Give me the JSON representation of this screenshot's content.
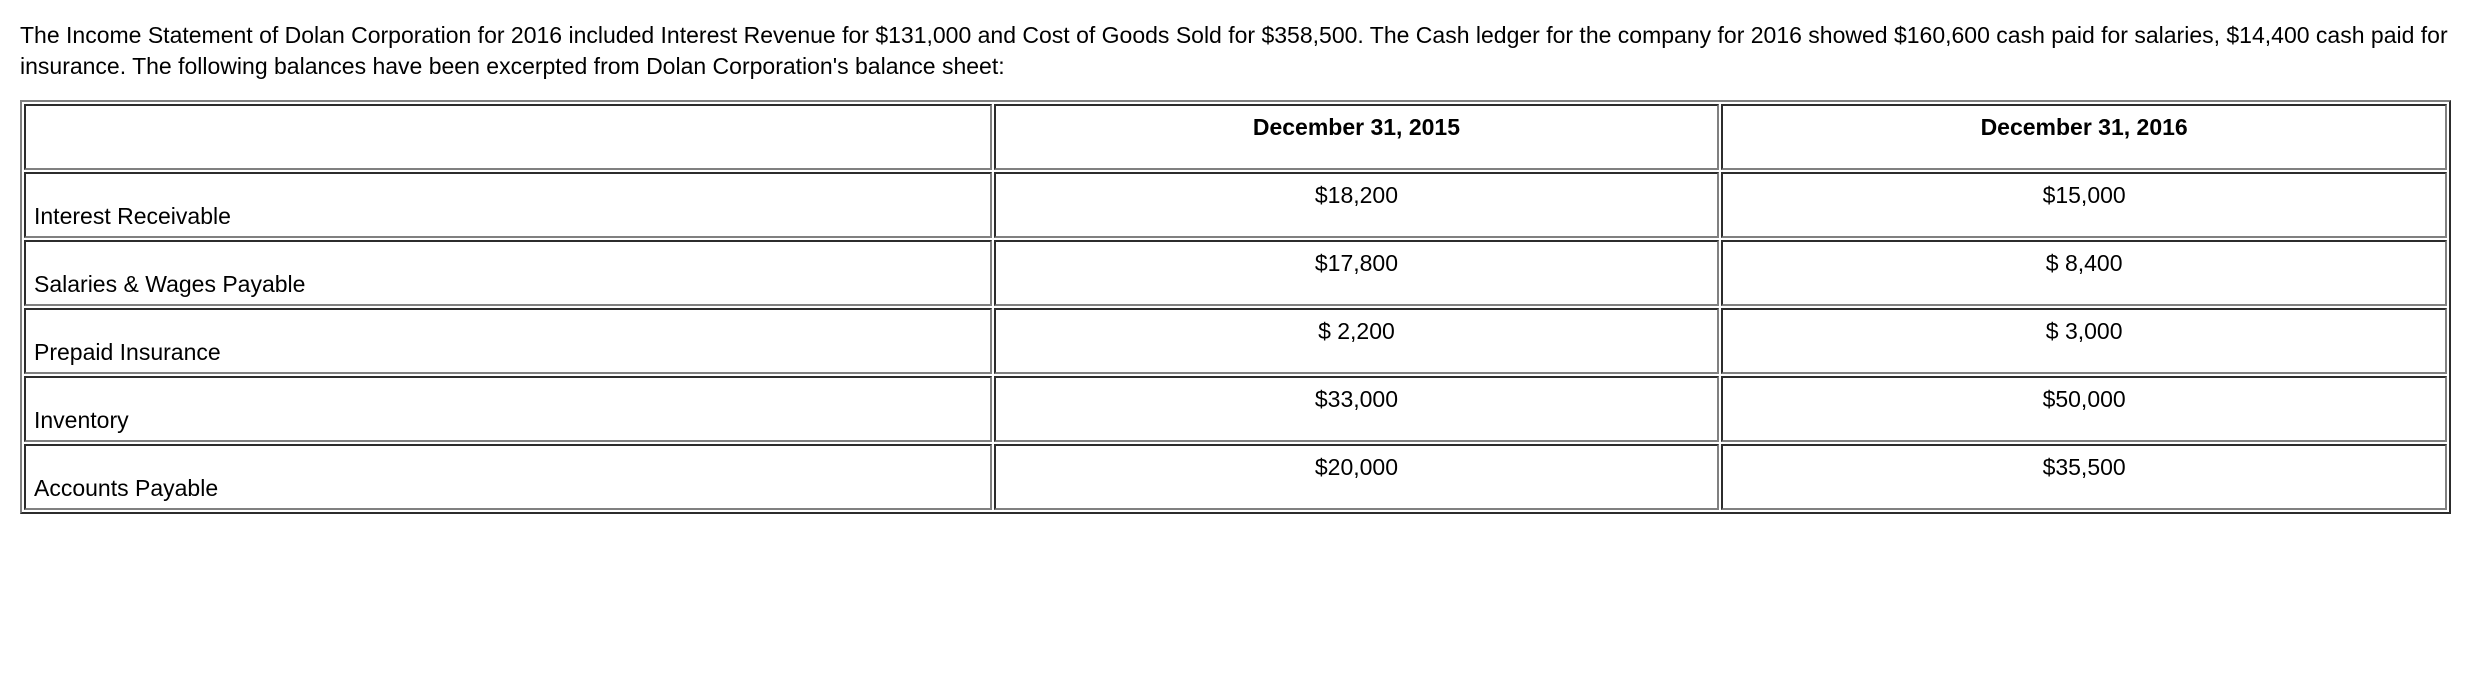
{
  "intro": "The Income Statement of Dolan Corporation for 2016 included Interest Revenue for $131,000 and Cost of Goods Sold for $358,500.  The Cash ledger for the company for 2016 showed $160,600 cash paid for salaries, $14,400 cash paid for insurance.  The following balances have been excerpted from Dolan Corporation's balance sheet:",
  "table": {
    "headers": {
      "col1": "",
      "col2": "December 31, 2015",
      "col3": "December 31, 2016"
    },
    "rows": [
      {
        "label": "Interest Receivable",
        "v2015": "$18,200",
        "v2016": "$15,000"
      },
      {
        "label": "Salaries & Wages Payable",
        "v2015": "$17,800",
        "v2016": "$  8,400"
      },
      {
        "label": "Prepaid Insurance",
        "v2015": "$  2,200",
        "v2016": "$  3,000"
      },
      {
        "label": "Inventory",
        "v2015": "$33,000",
        "v2016": "$50,000"
      },
      {
        "label": "Accounts Payable",
        "v2015": "$20,000",
        "v2016": "$35,500"
      }
    ]
  }
}
